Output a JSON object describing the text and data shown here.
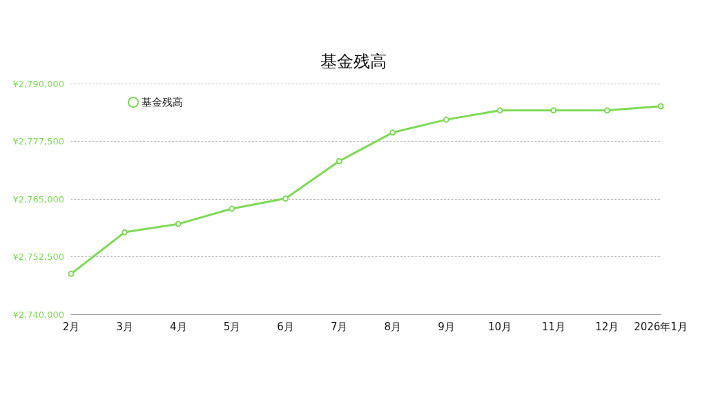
{
  "chart_data": {
    "type": "line",
    "title": "基金残高",
    "categories": [
      "2月",
      "3月",
      "4月",
      "5月",
      "6月",
      "7月",
      "8月",
      "9月",
      "10月",
      "11月",
      "12月",
      "2026年1月"
    ],
    "series": [
      {
        "name": "基金残高",
        "color": "#7ed957",
        "values": [
          2748800,
          2757800,
          2759600,
          2762900,
          2765100,
          2773200,
          2779400,
          2782200,
          2784200,
          2784200,
          2784200,
          2785100
        ]
      }
    ],
    "ylim": [
      2740000,
      2790000
    ],
    "yticks": [
      {
        "value": 2740000,
        "label": "¥2,740,000"
      },
      {
        "value": 2752500,
        "label": "¥2,752,500"
      },
      {
        "value": 2765000,
        "label": "¥2,765,000"
      },
      {
        "value": 2777500,
        "label": "¥2,777,500"
      },
      {
        "value": 2790000,
        "label": "¥2,790,000"
      }
    ],
    "grid": "y",
    "legend": "top left",
    "marker": "circle",
    "line_style": "solid"
  }
}
